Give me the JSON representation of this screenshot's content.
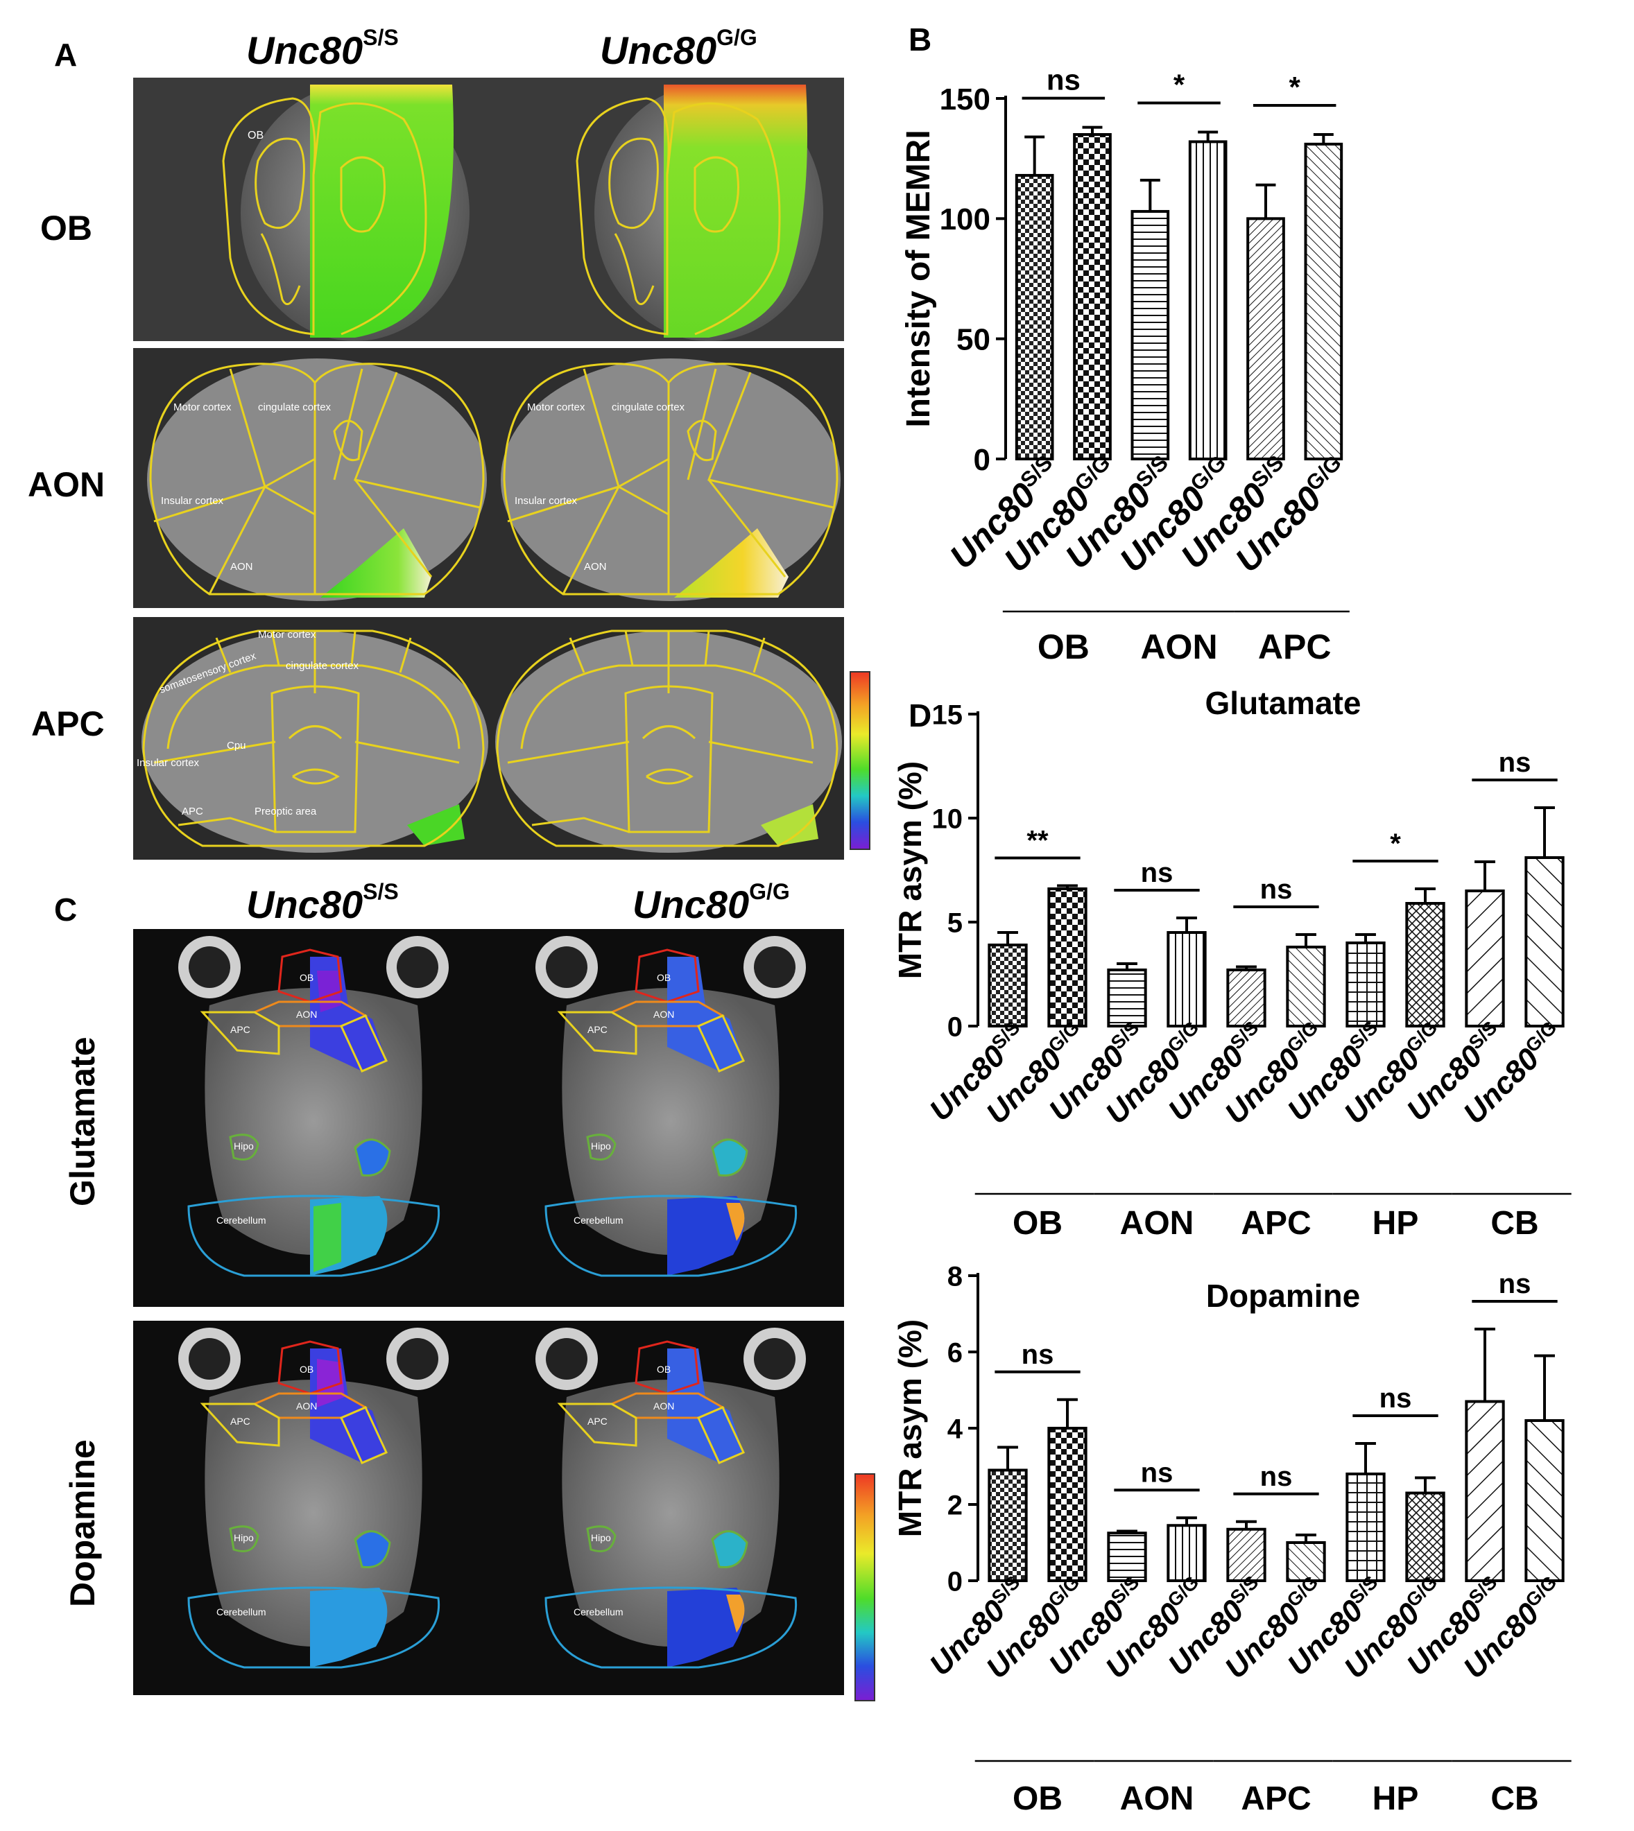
{
  "panels": {
    "A": {
      "label": "A",
      "columns": [
        {
          "base": "Unc80",
          "sup": "S/S"
        },
        {
          "base": "Unc80",
          "sup": "G/G"
        }
      ],
      "rows": [
        "OB",
        "AON",
        "APC"
      ],
      "region_labels": {
        "ob": "OB",
        "aon": [
          "Motor cortex",
          "cingulate cortex",
          "Insular cortex",
          "AON"
        ],
        "apc": [
          "somatosensory cortex",
          "Motor cortex",
          "cingulate cortex",
          "Insular cortex",
          "Cpu",
          "APC",
          "Preoptic area"
        ]
      }
    },
    "C": {
      "label": "C",
      "columns": [
        {
          "base": "Unc80",
          "sup": "S/S"
        },
        {
          "base": "Unc80",
          "sup": "G/G"
        }
      ],
      "rows": [
        "Glutamate",
        "Dopamine"
      ],
      "region_labels": [
        "OB",
        "AON",
        "APC",
        "Hipo",
        "Cerebellum"
      ]
    },
    "B": {
      "label": "B"
    },
    "D": {
      "label": "D"
    }
  },
  "chart_data": [
    {
      "id": "B",
      "type": "bar",
      "ylabel": "Intensity of MEMRI",
      "ylim": [
        0,
        150
      ],
      "yticks": [
        0,
        50,
        100,
        150
      ],
      "categories": [
        "Unc80 S/S",
        "Unc80 G/G",
        "Unc80 S/S",
        "Unc80 G/G",
        "Unc80 S/S",
        "Unc80 G/G"
      ],
      "tick_base": "Unc80",
      "tick_sups": [
        "S/S",
        "G/G",
        "S/S",
        "G/G",
        "S/S",
        "G/G"
      ],
      "groups": [
        "OB",
        "AON",
        "APC"
      ],
      "values": [
        118,
        135,
        103,
        132,
        100,
        131
      ],
      "errors": [
        16,
        3,
        13,
        4,
        14,
        4
      ],
      "significance": [
        "ns",
        "*",
        "*"
      ]
    },
    {
      "id": "D-glutamate",
      "type": "bar",
      "title": "Glutamate",
      "ylabel": "MTR asym (%)",
      "ylim": [
        0,
        15
      ],
      "yticks": [
        0,
        5,
        10,
        15
      ],
      "tick_base": "Unc80",
      "tick_sups": [
        "S/S",
        "G/G",
        "S/S",
        "G/G",
        "S/S",
        "G/G",
        "S/S",
        "G/G",
        "S/S",
        "G/G"
      ],
      "groups": [
        "OB",
        "AON",
        "APC",
        "HP",
        "CB"
      ],
      "values": [
        3.9,
        6.6,
        2.7,
        4.5,
        2.7,
        3.8,
        4.0,
        5.9,
        6.5,
        8.1
      ],
      "errors": [
        0.6,
        0.15,
        0.3,
        0.7,
        0.15,
        0.6,
        0.4,
        0.7,
        1.4,
        2.4
      ],
      "significance": [
        "**",
        "ns",
        "ns",
        "*",
        "ns"
      ]
    },
    {
      "id": "D-dopamine",
      "type": "bar",
      "title": "Dopamine",
      "ylabel": "MTR asym (%)",
      "ylim": [
        0,
        8
      ],
      "yticks": [
        0,
        2,
        4,
        6,
        8
      ],
      "tick_base": "Unc80",
      "tick_sups": [
        "S/S",
        "G/G",
        "S/S",
        "G/G",
        "S/S",
        "G/G",
        "S/S",
        "G/G",
        "S/S",
        "G/G"
      ],
      "groups": [
        "OB",
        "AON",
        "APC",
        "HP",
        "CB"
      ],
      "values": [
        2.9,
        4.0,
        1.25,
        1.45,
        1.35,
        1.0,
        2.8,
        2.3,
        4.7,
        4.2
      ],
      "errors": [
        0.6,
        0.75,
        0.05,
        0.2,
        0.2,
        0.2,
        0.8,
        0.4,
        1.9,
        1.7
      ],
      "significance": [
        "ns",
        "ns",
        "ns",
        "ns",
        "ns"
      ]
    }
  ],
  "colors": {
    "outline_yellow": "#e8d21e",
    "ob_red": "#e0261c",
    "aon_orange": "#ee8a1c",
    "hipo_green": "#68b03c",
    "cereb_blue": "#2a9fd6"
  }
}
